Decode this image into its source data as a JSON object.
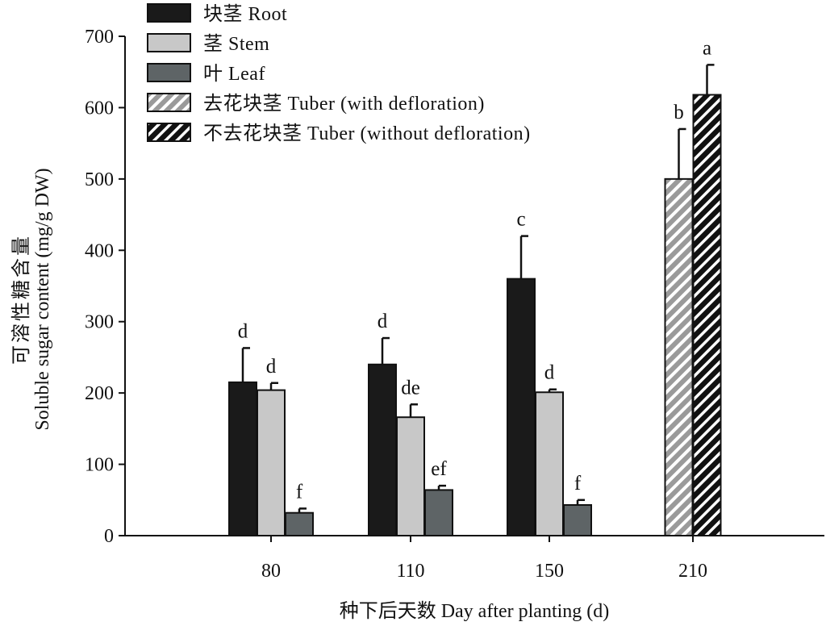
{
  "chart_data": {
    "type": "bar",
    "ylabel_cn": "可溶性糖含量",
    "ylabel_en": "Soluble sugar content (mg/g DW)",
    "xlabel": "种下后天数 Day after planting (d)",
    "ylim": [
      0,
      700
    ],
    "yticks": [
      0,
      100,
      200,
      300,
      400,
      500,
      600,
      700
    ],
    "categories": [
      "80",
      "110",
      "150",
      "210"
    ],
    "legend_position": "top-left",
    "series": [
      {
        "name": "块茎 Root",
        "color": "#1a1a1a",
        "pattern": "solid",
        "values": [
          215,
          240,
          360,
          null
        ],
        "errors": [
          48,
          37,
          60,
          null
        ],
        "labels": [
          "d",
          "d",
          "c",
          null
        ]
      },
      {
        "name": "茎 Stem",
        "color": "#c8c8c8",
        "pattern": "solid",
        "values": [
          204,
          166,
          201,
          null
        ],
        "errors": [
          10,
          18,
          4,
          null
        ],
        "labels": [
          "d",
          "de",
          "d",
          null
        ]
      },
      {
        "name": "叶 Leaf",
        "color": "#5e6466",
        "pattern": "solid",
        "values": [
          32,
          64,
          43,
          null
        ],
        "errors": [
          6,
          6,
          7,
          null
        ],
        "labels": [
          "f",
          "ef",
          "f",
          null
        ]
      },
      {
        "name": "去花块茎 Tuber (with defloration)",
        "color": "#9a9a9a",
        "pattern": "hatch-light",
        "values": [
          null,
          null,
          null,
          500
        ],
        "errors": [
          null,
          null,
          null,
          70
        ],
        "labels": [
          null,
          null,
          null,
          "b"
        ]
      },
      {
        "name": "不去花块茎 Tuber (without defloration)",
        "color": "#1a1a1a",
        "pattern": "hatch-dark",
        "values": [
          null,
          null,
          null,
          618
        ],
        "errors": [
          null,
          null,
          null,
          42
        ],
        "labels": [
          null,
          null,
          null,
          "a"
        ]
      }
    ]
  }
}
